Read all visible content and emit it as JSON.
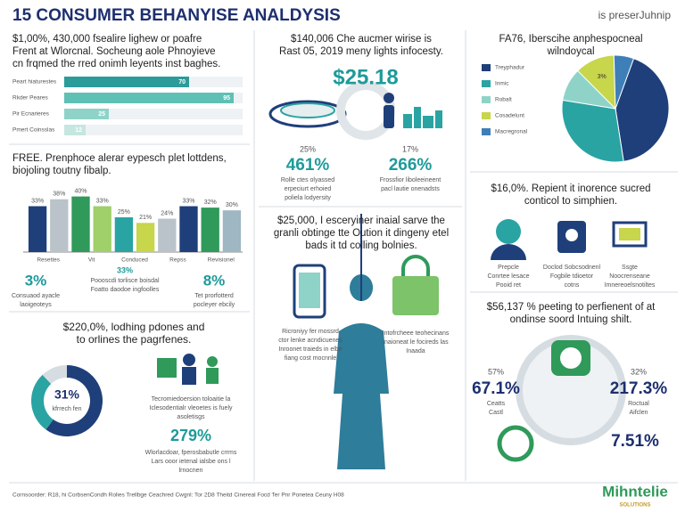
{
  "header": {
    "title": "15 CONSUMER BEHANYISE ANALDYSIS",
    "tag": "is preserJuhnip"
  },
  "reach": {
    "heading": [
      "$1,00%, 430,000 fsealire lighew or poafre",
      "Frent at Wlorcnal. Socheung aole Phnoyieve",
      "cn frqmed the rred onimh leyents inst baghes."
    ]
  },
  "growth": {
    "heading": [
      "FREE. Prenphoce alerar eypesch plet lottdens,",
      "biojoling toutny fibalp."
    ],
    "stats": [
      {
        "value": "3%",
        "caption": [
          "Consuaod ayacle",
          "laoigeoteys"
        ]
      },
      {
        "value": "33%",
        "caption": [
          "Poooscdi torlisce boisdal",
          "Foatto daodoe ingfoolles"
        ]
      },
      {
        "value": "8%",
        "caption": [
          "Tet prorfotterd",
          "pocleyer ebcily"
        ]
      }
    ]
  },
  "mobile": {
    "heading": [
      "$140,006 Che aucmer wirise is",
      "Rast 05, 2019 meny lights infocesty."
    ],
    "highlight": "$25.18",
    "stats": [
      {
        "label": "25%",
        "value": "461%",
        "caption": [
          "Rolle ctes olyassed",
          "erpeciurt erhoied",
          "poliela lodyersity"
        ]
      },
      {
        "label": "17%",
        "value": "266%",
        "caption": [
          "Frossfior liboleeineent",
          "pacl lautie onenadsts"
        ]
      }
    ]
  },
  "shopping": {
    "heading": [
      "$25,000, I esceryiner inaial sarve the",
      "granli obtinge tte Oution it dingeny etel",
      "bads it td colling bolnies."
    ],
    "captions": [
      [
        "Ricroniyy fer mossrd",
        "ctor lenke acndicuenes",
        "Inroonet traieds in elbe",
        "fiang cost mocnnle"
      ],
      [
        "Intofrcheee teohecinans",
        "inaioneat le focireds las",
        "Inaada"
      ]
    ]
  },
  "share": {
    "heading": [
      "FA76, Iberscihe anphespocneal",
      "wilndoycal"
    ],
    "slice_label": "3%"
  },
  "support": {
    "heading": [
      "$16,0%. Repient it inorence sucred",
      "conticol to simphien."
    ],
    "captions": [
      [
        "Prepcle",
        "Conrtee lesace",
        "Pooid ret"
      ],
      [
        "Doclod Sobcsodnenl",
        "Fogbile tdioetor",
        "cotns"
      ],
      [
        "Ssgte",
        "Noocrenseane",
        "Imnereoelsnotiltes"
      ]
    ]
  },
  "trust": {
    "heading": [
      "$56,137 % peeting to perfienent of at",
      "ondinse soord Intuing shilt."
    ],
    "stats": [
      {
        "label": "57%",
        "value": "67.1%",
        "caption": [
          "Ceatts",
          "Castl"
        ]
      },
      {
        "label": "32%",
        "value": "217.3%",
        "caption": [
          "Roctual",
          "Aifclen"
        ]
      },
      {
        "value": "7.51%"
      }
    ]
  },
  "retention": {
    "heading": [
      "$220,0%, lodhing pdones and",
      "to orlines the pagrfenes."
    ],
    "donut_label": [
      "31%",
      "kfrrech fen"
    ],
    "caption": [
      "Tecromiedoersion toloaitie la",
      "Iclesodentialr vleoetes is fuely",
      "asoletisgs"
    ],
    "highlight": "279%",
    "caption2": [
      "Wlorlacdoar, fperosbabutle crrms",
      "Lars ooor ietenal ialsbe ons l",
      "lrnocnen"
    ]
  },
  "footer": {
    "note": "Cornsoorder: R18, hi CorbsenCondh Rolies Trellbge Ceachred Cwgnl: Tor 2D8 Theitd Cinereal Focd Ter Pnr Ponetea Ceuny H08",
    "brand": "Mihntelie",
    "brand_sub": "SOLUTIONS"
  },
  "chart_data": [
    {
      "type": "hbar",
      "categories": [
        "Peart hiaturestes",
        "Rkder Peares",
        "Pir Ecnarieres",
        "Pmert Coinsslas"
      ],
      "values": [
        70,
        95,
        25,
        12
      ],
      "colors": [
        "#2b9c99",
        "#5fc0b5",
        "#8fd3c8",
        "#c6e6e0"
      ],
      "xlim": [
        0,
        100
      ]
    },
    {
      "type": "bar",
      "categories": [
        "Resettes",
        null,
        "Vit",
        null,
        "Conduced",
        null,
        "Repss",
        null,
        "Revisionel",
        null
      ],
      "values": [
        33,
        38,
        40,
        33,
        25,
        21,
        24,
        33,
        32,
        30
      ],
      "value_labels": [
        "33%",
        "38%",
        "40%",
        "33%",
        "25%",
        "21%",
        "24%",
        "33%",
        "32%",
        "30%"
      ],
      "colors": [
        "#1f3f7a",
        "#b9c3c9",
        "#2f9a5a",
        "#9fd06a",
        "#2aa3a3",
        "#c7d64a",
        "#b9c3c9",
        "#1f3f7a",
        "#2f9a5a",
        "#9fb6c3"
      ],
      "ylim": [
        0,
        50
      ]
    },
    {
      "type": "pie",
      "categories": [
        "Treyphadur",
        "Inmic",
        "Robalt",
        "Cosadelunt",
        "Macregronal"
      ],
      "values": [
        42,
        30,
        10,
        12,
        6
      ],
      "colors": [
        "#1f3f7a",
        "#2aa3a3",
        "#8fd3c8",
        "#c7d64a",
        "#3f7fb8"
      ]
    },
    {
      "type": "donut",
      "values": [
        60,
        28,
        12
      ],
      "colors": [
        "#1f3f7a",
        "#2aa3a3",
        "#d6dde2"
      ]
    }
  ]
}
